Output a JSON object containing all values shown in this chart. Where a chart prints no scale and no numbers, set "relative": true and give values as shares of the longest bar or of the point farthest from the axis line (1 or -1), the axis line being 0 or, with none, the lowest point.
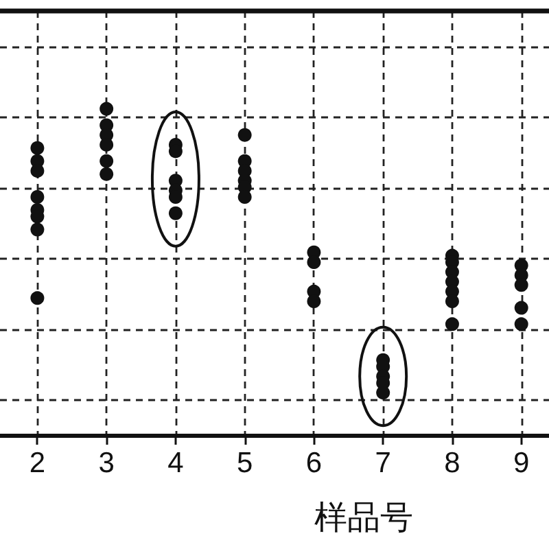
{
  "chart_data": {
    "type": "scatter",
    "xlabel": "样品号",
    "xlim": [
      1.46,
      9.4
    ],
    "xticks": [
      2,
      3,
      4,
      5,
      6,
      7,
      8,
      9
    ],
    "relative": true,
    "grid": true,
    "tick_labels": "x",
    "marker": "circle",
    "series": [
      {
        "color": "#111111",
        "x": [
          2,
          2,
          2,
          2,
          2,
          2,
          2,
          2,
          3,
          3,
          3,
          3,
          3,
          3,
          4,
          4,
          4,
          4,
          4,
          4,
          5,
          5,
          5,
          5,
          5,
          5,
          6,
          6,
          6,
          6,
          7,
          7,
          7,
          7,
          7,
          8,
          8,
          8,
          8,
          8,
          8,
          8,
          9,
          9,
          9,
          9,
          9
        ],
        "values": [
          0.88,
          0.84,
          0.81,
          0.73,
          0.69,
          0.67,
          0.63,
          0.42,
          1.0,
          0.95,
          0.92,
          0.89,
          0.84,
          0.8,
          0.89,
          0.87,
          0.78,
          0.75,
          0.73,
          0.68,
          0.92,
          0.84,
          0.81,
          0.78,
          0.76,
          0.73,
          0.56,
          0.53,
          0.44,
          0.41,
          0.23,
          0.21,
          0.18,
          0.16,
          0.13,
          0.55,
          0.53,
          0.5,
          0.47,
          0.44,
          0.41,
          0.34,
          0.52,
          0.49,
          0.46,
          0.39,
          0.34
        ]
      }
    ]
  }
}
